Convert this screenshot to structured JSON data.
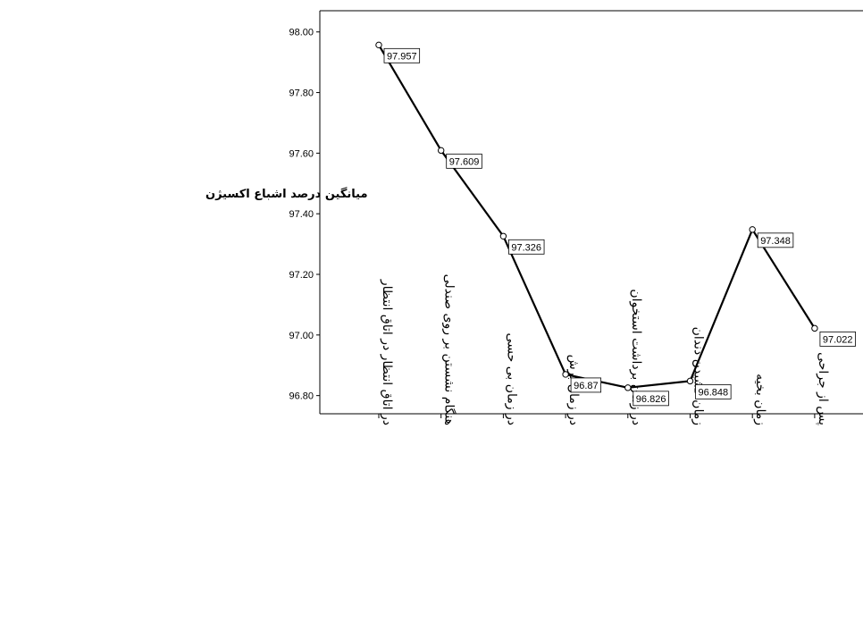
{
  "chart_data": {
    "type": "line",
    "ylabel": "میانگین درصد اشباع اکسیژن",
    "categories": [
      "در اتاق انتظار در اتاق انتظار",
      "هنگام نشستن بر روی صندلی",
      "در زمان بی حسی",
      "در زمان برش",
      "در زمان برداشت استخوان",
      "زمان کشیدن دندان",
      "زمان بخیه",
      "پس از جراحی"
    ],
    "values": [
      97.957,
      97.609,
      97.326,
      96.87,
      96.826,
      96.848,
      97.348,
      97.022
    ],
    "data_labels": [
      "97.957",
      "97.609",
      "97.326",
      "96.87",
      "96.826",
      "96.848",
      "97.348",
      "97.022"
    ],
    "ylim": [
      96.74,
      98.07
    ],
    "yticks": [
      "96.80",
      "97.00",
      "97.20",
      "97.40",
      "97.60",
      "97.80",
      "98.00"
    ],
    "grid": false,
    "line_color": "#000000"
  }
}
